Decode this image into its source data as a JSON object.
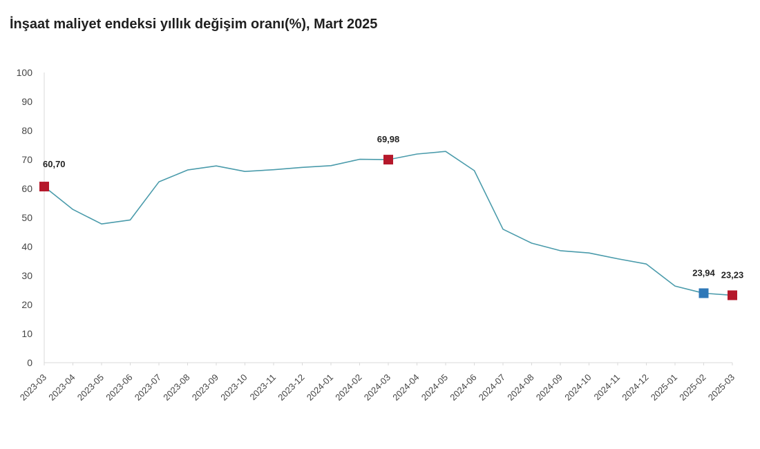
{
  "chart_data": {
    "type": "line",
    "title": "İnşaat maliyet endeksi yıllık değişim oranı(%), Mart 2025",
    "xlabel": "",
    "ylabel": "",
    "ylim": [
      0,
      100
    ],
    "yticks": [
      0,
      10,
      20,
      30,
      40,
      50,
      60,
      70,
      80,
      90,
      100
    ],
    "grid": false,
    "legend": "none",
    "categories": [
      "2023-03",
      "2023-04",
      "2023-05",
      "2023-06",
      "2023-07",
      "2023-08",
      "2023-09",
      "2023-10",
      "2023-11",
      "2023-12",
      "2024-01",
      "2024-02",
      "2024-03",
      "2024-04",
      "2024-05",
      "2024-06",
      "2024-07",
      "2024-08",
      "2024-09",
      "2024-10",
      "2024-11",
      "2024-12",
      "2025-01",
      "2025-02",
      "2025-03"
    ],
    "series": [
      {
        "values": [
          60.7,
          52.8,
          47.8,
          49.2,
          62.3,
          66.4,
          67.8,
          65.9,
          66.5,
          67.3,
          67.9,
          70.1,
          69.98,
          71.9,
          72.8,
          66.2,
          46.0,
          41.2,
          38.6,
          37.8,
          35.8,
          34.0,
          26.4,
          23.94,
          23.23
        ],
        "color": "#4a9bab"
      }
    ],
    "highlights": [
      {
        "category": "2023-03",
        "value": 60.7,
        "label": "60,70",
        "color": "#b5182b"
      },
      {
        "category": "2024-03",
        "value": 69.98,
        "label": "69,98",
        "color": "#b5182b"
      },
      {
        "category": "2025-02",
        "value": 23.94,
        "label": "23,94",
        "color": "#2e78b8"
      },
      {
        "category": "2025-03",
        "value": 23.23,
        "label": "23,23",
        "color": "#b5182b"
      }
    ]
  }
}
